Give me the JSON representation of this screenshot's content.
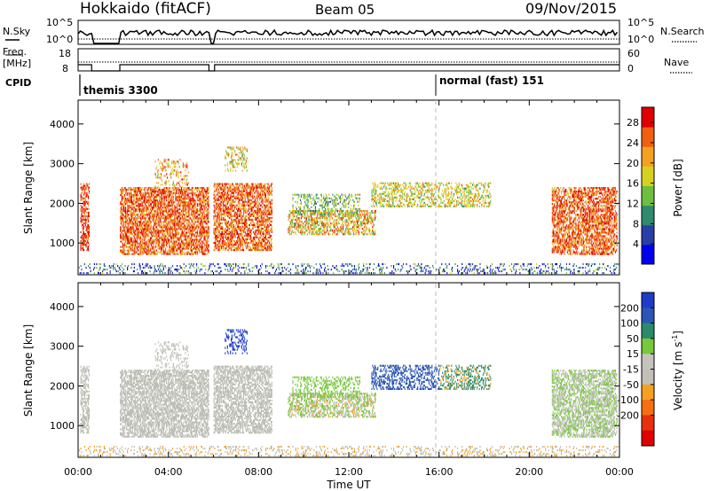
{
  "header": {
    "station": "Hokkaido (fitACF)",
    "beam": "Beam 05",
    "date": "09/Nov/2015"
  },
  "top_panels": {
    "nsky_label": "N.Sky",
    "nsky_ticks": [
      "10^5",
      "10^0"
    ],
    "nsearch_label": "N.Search",
    "nsearch_ticks": [
      "10^5",
      "10^0"
    ],
    "freq_label": "Freq.",
    "freq_unit": "[MHz]",
    "freq_ticks": [
      "18",
      "8"
    ],
    "nave_label": "Nave",
    "nave_ticks": [
      "60",
      "0"
    ],
    "cpid_label": "CPID",
    "cpid_segments": [
      {
        "label": "themis 3300",
        "start_h": 0
      },
      {
        "label": "normal (fast) 151",
        "start_h": 16
      }
    ]
  },
  "colors": {
    "power_scale": [
      "#0000ee",
      "#2a3fa5",
      "#2f8a6e",
      "#6fbf3f",
      "#d8d020",
      "#f4a020",
      "#f06010",
      "#e00000"
    ],
    "velocity_scale": [
      "#1e3cc8",
      "#2c55b4",
      "#2a8a6c",
      "#78c83c",
      "#c4c4bc",
      "#c0c0b8",
      "#f4a020",
      "#f47010",
      "#e83010",
      "#e00000"
    ],
    "ground_scatter": "#bdbdb5"
  },
  "chart_data": [
    {
      "type": "heatmap",
      "name_text": "power-panel",
      "xlabel": "",
      "ylabel": "Slant Range [km]",
      "ylim": [
        200,
        4600
      ],
      "yticks": [
        "1000",
        "2000",
        "3000",
        "4000"
      ],
      "xlim_hours": [
        0,
        24
      ],
      "colorbar": {
        "label": "Power [dB]",
        "ticks": [
          "4",
          "8",
          "12",
          "16",
          "20",
          "24",
          "28"
        ],
        "range": [
          0,
          31
        ]
      }
    },
    {
      "type": "heatmap",
      "name_text": "velocity-panel",
      "xlabel": "Time UT",
      "ylabel": "Slant Range [km]",
      "ylim": [
        200,
        4600
      ],
      "yticks": [
        "1000",
        "2000",
        "3000",
        "4000"
      ],
      "xticks": [
        "00:00",
        "04:00",
        "08:00",
        "12:00",
        "16:00",
        "20:00",
        "00:00"
      ],
      "xlim_hours": [
        0,
        24
      ],
      "colorbar": {
        "label": "Velocity [m s",
        "label_sup": "-1",
        "label_end": "]",
        "ticks": [
          "200",
          "100",
          "50",
          "15",
          "-15",
          "-50",
          "-100",
          "-200"
        ]
      }
    }
  ]
}
